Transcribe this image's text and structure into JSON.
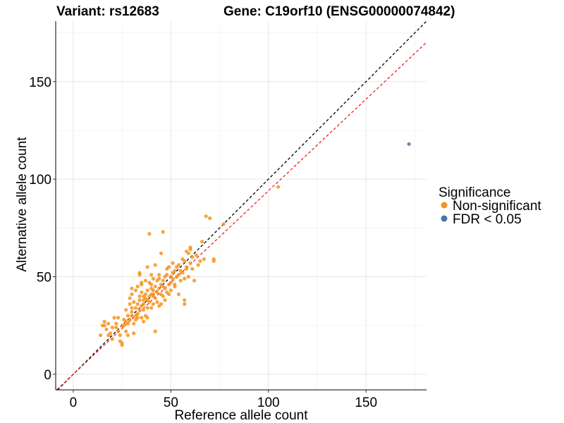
{
  "chart_data": {
    "type": "scatter",
    "title_left": "Variant: rs12683",
    "title_right": "Gene: C19orf10 (ENSG00000074842)",
    "xlabel": "Reference allele count",
    "ylabel": "Alternative allele count",
    "xlim": [
      -9,
      181
    ],
    "ylim": [
      -8,
      181
    ],
    "x_ticks": [
      0,
      50,
      100,
      150
    ],
    "y_ticks": [
      0,
      50,
      100,
      150
    ],
    "reference_lines": [
      {
        "name": "identity",
        "slope": 1.0,
        "color": "#000000"
      },
      {
        "name": "fitted",
        "slope": 0.94,
        "color": "#ee2222"
      }
    ],
    "legend": {
      "title": "Significance",
      "position": "right",
      "entries": [
        {
          "label": "Non-significant",
          "color": "#F7931E"
        },
        {
          "label": "FDR < 0.05",
          "color": "#4A74A8"
        }
      ]
    },
    "series": [
      {
        "name": "Non-significant",
        "color": "#F7931E",
        "points": [
          [
            14,
            20
          ],
          [
            15,
            25
          ],
          [
            16,
            25
          ],
          [
            16,
            27
          ],
          [
            17,
            23
          ],
          [
            18,
            26
          ],
          [
            18,
            20
          ],
          [
            19,
            21
          ],
          [
            20,
            18
          ],
          [
            20,
            24
          ],
          [
            21,
            29
          ],
          [
            22,
            26
          ],
          [
            22,
            24
          ],
          [
            23,
            29
          ],
          [
            23,
            22
          ],
          [
            24,
            20
          ],
          [
            24,
            17
          ],
          [
            25,
            16
          ],
          [
            25,
            25
          ],
          [
            26,
            25
          ],
          [
            26,
            28
          ],
          [
            27,
            27
          ],
          [
            27,
            33
          ],
          [
            27,
            22
          ],
          [
            28,
            30
          ],
          [
            28,
            26
          ],
          [
            28,
            20
          ],
          [
            29,
            39
          ],
          [
            29,
            36
          ],
          [
            29,
            28
          ],
          [
            30,
            32
          ],
          [
            30,
            41
          ],
          [
            30,
            44
          ],
          [
            30,
            30
          ],
          [
            31,
            37
          ],
          [
            31,
            21
          ],
          [
            31,
            26
          ],
          [
            32,
            30
          ],
          [
            32,
            34
          ],
          [
            32,
            43
          ],
          [
            32,
            28
          ],
          [
            33,
            45
          ],
          [
            33,
            31
          ],
          [
            33,
            36
          ],
          [
            33,
            29
          ],
          [
            34,
            38
          ],
          [
            34,
            52
          ],
          [
            34,
            51
          ],
          [
            34,
            40
          ],
          [
            34,
            33
          ],
          [
            35,
            29
          ],
          [
            35,
            47
          ],
          [
            35,
            46
          ],
          [
            35,
            35
          ],
          [
            35,
            42
          ],
          [
            36,
            38
          ],
          [
            36,
            40
          ],
          [
            36,
            36
          ],
          [
            36,
            33
          ],
          [
            37,
            41
          ],
          [
            37,
            39
          ],
          [
            37,
            30
          ],
          [
            37,
            48
          ],
          [
            38,
            34
          ],
          [
            38,
            38
          ],
          [
            38,
            29
          ],
          [
            38,
            43
          ],
          [
            39,
            72
          ],
          [
            39,
            40
          ],
          [
            39,
            47
          ],
          [
            39,
            37
          ],
          [
            40,
            41
          ],
          [
            40,
            44
          ],
          [
            40,
            51
          ],
          [
            40,
            46
          ],
          [
            40,
            34
          ],
          [
            41,
            36
          ],
          [
            41,
            43
          ],
          [
            41,
            49
          ],
          [
            41,
            40
          ],
          [
            42,
            39
          ],
          [
            42,
            45
          ],
          [
            42,
            56
          ],
          [
            42,
            22
          ],
          [
            43,
            42
          ],
          [
            43,
            48
          ],
          [
            43,
            37
          ],
          [
            44,
            44
          ],
          [
            44,
            49
          ],
          [
            44,
            51
          ],
          [
            44,
            35
          ],
          [
            45,
            41
          ],
          [
            45,
            46
          ],
          [
            45,
            62
          ],
          [
            45,
            36
          ],
          [
            46,
            40
          ],
          [
            46,
            48
          ],
          [
            46,
            73
          ],
          [
            46,
            45
          ],
          [
            47,
            50
          ],
          [
            47,
            44
          ],
          [
            47,
            38
          ],
          [
            48,
            54
          ],
          [
            48,
            42
          ],
          [
            48,
            51
          ],
          [
            49,
            46
          ],
          [
            49,
            55
          ],
          [
            49,
            41
          ],
          [
            50,
            50
          ],
          [
            50,
            47
          ],
          [
            50,
            43
          ],
          [
            51,
            52
          ],
          [
            51,
            57
          ],
          [
            51,
            49
          ],
          [
            52,
            53
          ],
          [
            52,
            45
          ],
          [
            52,
            46
          ],
          [
            53,
            50
          ],
          [
            53,
            55
          ],
          [
            54,
            56
          ],
          [
            54,
            51
          ],
          [
            55,
            48
          ],
          [
            55,
            53
          ],
          [
            56,
            59
          ],
          [
            56,
            52
          ],
          [
            57,
            58
          ],
          [
            57,
            49
          ],
          [
            57,
            36
          ],
          [
            57,
            38
          ],
          [
            58,
            63
          ],
          [
            58,
            55
          ],
          [
            58,
            54
          ],
          [
            59,
            50
          ],
          [
            59,
            62
          ],
          [
            60,
            57
          ],
          [
            60,
            65
          ],
          [
            60,
            64
          ],
          [
            61,
            60
          ],
          [
            61,
            54
          ],
          [
            62,
            48
          ],
          [
            63,
            61
          ],
          [
            64,
            56
          ],
          [
            65,
            58
          ],
          [
            66,
            68
          ],
          [
            67,
            59
          ],
          [
            68,
            81
          ],
          [
            70,
            80
          ],
          [
            72,
            58
          ],
          [
            72,
            59
          ],
          [
            77,
            77
          ],
          [
            105,
            96
          ],
          [
            30,
            34
          ],
          [
            36,
            27
          ],
          [
            41,
            41
          ],
          [
            25,
            15
          ],
          [
            38,
            55
          ],
          [
            54,
            41
          ]
        ]
      },
      {
        "name": "FDR < 0.05",
        "color": "#4A74A8",
        "points": [
          [
            172,
            118
          ]
        ]
      }
    ]
  }
}
